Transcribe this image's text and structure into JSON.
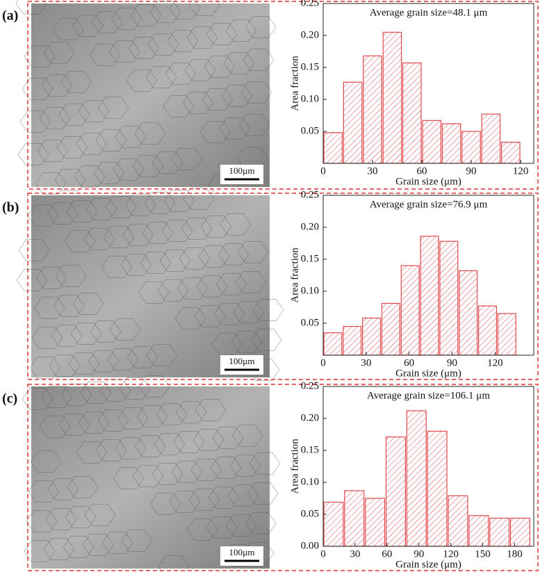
{
  "chart_data": [
    {
      "type": "histogram",
      "panel_label": "(a)",
      "scale_bar": "100µm",
      "title": "Average grain size=48.1 μm",
      "x_label": "Grain size (μm)",
      "y_label": "Area fraction",
      "color": "#e0484c",
      "bins": [
        0,
        12,
        24,
        36,
        48,
        60,
        72,
        84,
        96,
        108,
        120
      ],
      "values": [
        0.048,
        0.127,
        0.168,
        0.205,
        0.157,
        0.067,
        0.062,
        0.05,
        0.077,
        0.033
      ],
      "xlim": [
        0,
        128
      ],
      "xticks": [
        0,
        30,
        60,
        90,
        120
      ],
      "ylim": [
        0,
        0.25
      ],
      "yticks": [
        0.05,
        {
          "value": 0.1,
          "label": "0.10"
        },
        0.15,
        {
          "value": 0.2,
          "label": "0.20"
        },
        0.25
      ]
    },
    {
      "type": "histogram",
      "panel_label": "(b)",
      "scale_bar": "100µm",
      "title": "Average grain size=76.9 μm",
      "x_label": "Grain size (μm)",
      "y_label": "Area fraction",
      "color": "#e0484c",
      "bins": [
        0,
        13.5,
        27,
        40.5,
        54,
        67.5,
        81,
        94.5,
        108,
        121.5,
        135
      ],
      "values": [
        0.035,
        0.045,
        0.058,
        0.081,
        0.14,
        0.186,
        0.178,
        0.132,
        0.077,
        0.065
      ],
      "xlim": [
        0,
        147
      ],
      "xticks": [
        0,
        30,
        60,
        90,
        120
      ],
      "ylim": [
        0,
        0.25
      ],
      "yticks": [
        0.05,
        {
          "value": 0.1,
          "label": "0.10"
        },
        0.15,
        {
          "value": 0.2,
          "label": "0.20"
        },
        0.25
      ]
    },
    {
      "type": "histogram",
      "panel_label": "(c)",
      "scale_bar": "100µm",
      "title": "Average grain size=106.1 μm",
      "x_label": "Grain size (μm)",
      "y_label": "Area fraction",
      "color": "#e0484c",
      "bins": [
        0,
        19.5,
        39,
        58.5,
        78,
        97.5,
        117,
        136.5,
        156,
        175.5,
        195
      ],
      "values": [
        0.069,
        0.087,
        0.075,
        0.171,
        0.212,
        0.18,
        0.079,
        0.048,
        0.044,
        0.044
      ],
      "xlim": [
        0,
        198
      ],
      "xticks": [
        0,
        30,
        60,
        90,
        120,
        150,
        180
      ],
      "ylim": [
        0,
        0.25
      ],
      "yticks": [
        {
          "value": 0,
          "label": "0.00"
        },
        0.05,
        {
          "value": 0.1,
          "label": "0.10"
        },
        0.15,
        {
          "value": 0.2,
          "label": "0.20"
        },
        0.25
      ]
    }
  ]
}
